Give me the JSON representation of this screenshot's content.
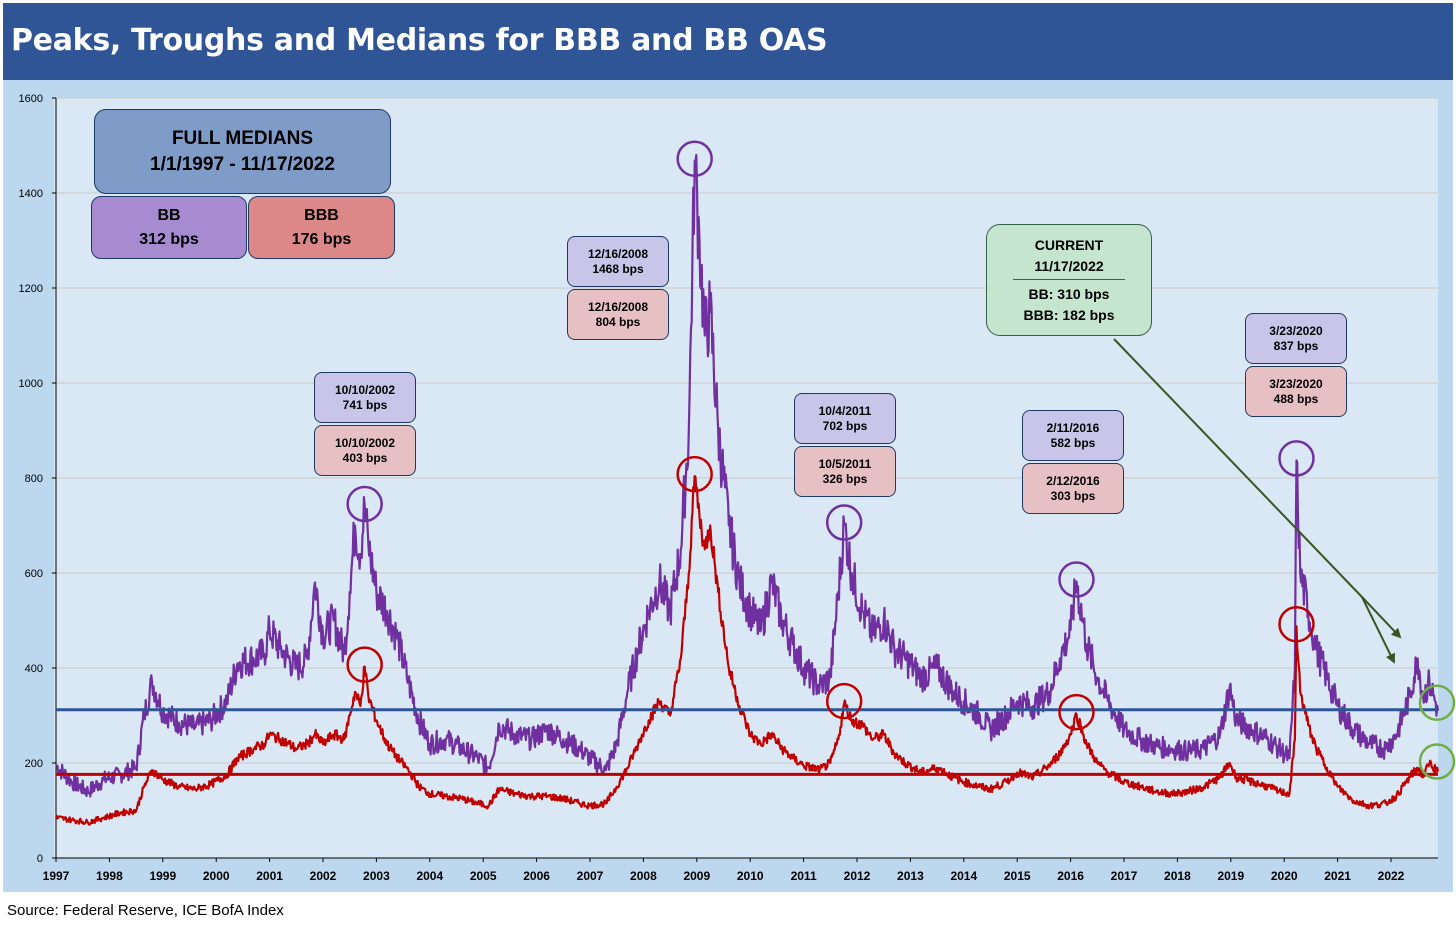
{
  "title": "Peaks, Troughs and Medians for BBB and BB OAS",
  "source": "Source: Federal Reserve, ICE BofA Index",
  "medians_box": {
    "title_line1": "FULL MEDIANS",
    "title_line2": "1/1/1997 - 11/17/2022",
    "bb_label": "BB",
    "bb_value": "312 bps",
    "bbb_label": "BBB",
    "bbb_value": "176 bps"
  },
  "current_box": {
    "line1": "CURRENT",
    "line2": "11/17/2022",
    "line3": "BB: 310 bps",
    "line4": "BBB: 182 bps"
  },
  "peak_labels": [
    {
      "bb_date": "10/10/2002",
      "bb_value": "741 bps",
      "bbb_date": "10/10/2002",
      "bbb_value": "403 bps"
    },
    {
      "bb_date": "12/16/2008",
      "bb_value": "1468 bps",
      "bbb_date": "12/16/2008",
      "bbb_value": "804 bps"
    },
    {
      "bb_date": "10/4/2011",
      "bb_value": "702 bps",
      "bbb_date": "10/5/2011",
      "bbb_value": "326 bps"
    },
    {
      "bb_date": "2/11/2016",
      "bb_value": "582 bps",
      "bbb_date": "2/12/2016",
      "bbb_value": "303 bps"
    },
    {
      "bb_date": "3/23/2020",
      "bb_value": "837 bps",
      "bbb_date": "3/23/2020",
      "bbb_value": "488 bps"
    }
  ],
  "colors": {
    "bb_line": "#7030a0",
    "bbb_line": "#c00000",
    "bb_median": "#2f5597",
    "bbb_median": "#c00000",
    "plot_bg": "#dae8f5",
    "current_marker": "#70ad47",
    "arrow": "#375623"
  },
  "chart_data": {
    "type": "line",
    "title": "Peaks, Troughs and Medians for BBB and BB OAS",
    "xlabel": "",
    "ylabel": "",
    "xlim": [
      1997.0,
      2022.88
    ],
    "ylim": [
      0,
      1600
    ],
    "y_ticks": [
      0,
      200,
      400,
      600,
      800,
      1000,
      1200,
      1400,
      1600
    ],
    "x_ticks": [
      "1997",
      "1998",
      "1999",
      "2000",
      "2001",
      "2002",
      "2003",
      "2004",
      "2005",
      "2006",
      "2007",
      "2008",
      "2009",
      "2010",
      "2011",
      "2012",
      "2013",
      "2014",
      "2015",
      "2016",
      "2017",
      "2018",
      "2019",
      "2020",
      "2021",
      "2022"
    ],
    "gridlines": true,
    "medians": {
      "BB": 312,
      "BBB": 176
    },
    "series": [
      {
        "name": "BB OAS",
        "points": [
          [
            1997.0,
            195
          ],
          [
            1997.3,
            160
          ],
          [
            1997.6,
            140
          ],
          [
            1997.9,
            165
          ],
          [
            1998.2,
            175
          ],
          [
            1998.5,
            190
          ],
          [
            1998.65,
            300
          ],
          [
            1998.8,
            370
          ],
          [
            1999.0,
            310
          ],
          [
            1999.3,
            285
          ],
          [
            1999.6,
            275
          ],
          [
            1999.9,
            290
          ],
          [
            2000.2,
            330
          ],
          [
            2000.4,
            410
          ],
          [
            2000.7,
            420
          ],
          [
            2000.9,
            430
          ],
          [
            2001.0,
            480
          ],
          [
            2001.2,
            440
          ],
          [
            2001.5,
            400
          ],
          [
            2001.7,
            420
          ],
          [
            2001.85,
            580
          ],
          [
            2002.0,
            470
          ],
          [
            2002.2,
            500
          ],
          [
            2002.4,
            430
          ],
          [
            2002.5,
            560
          ],
          [
            2002.6,
            700
          ],
          [
            2002.7,
            640
          ],
          [
            2002.78,
            741
          ],
          [
            2002.85,
            660
          ],
          [
            2003.0,
            560
          ],
          [
            2003.2,
            520
          ],
          [
            2003.4,
            460
          ],
          [
            2003.6,
            370
          ],
          [
            2003.8,
            290
          ],
          [
            2004.0,
            240
          ],
          [
            2004.3,
            250
          ],
          [
            2004.6,
            230
          ],
          [
            2004.9,
            210
          ],
          [
            2005.1,
            190
          ],
          [
            2005.3,
            280
          ],
          [
            2005.6,
            260
          ],
          [
            2005.9,
            250
          ],
          [
            2006.2,
            270
          ],
          [
            2006.5,
            250
          ],
          [
            2006.8,
            230
          ],
          [
            2007.0,
            210
          ],
          [
            2007.3,
            185
          ],
          [
            2007.5,
            240
          ],
          [
            2007.7,
            350
          ],
          [
            2007.9,
            440
          ],
          [
            2008.1,
            520
          ],
          [
            2008.3,
            580
          ],
          [
            2008.5,
            520
          ],
          [
            2008.7,
            650
          ],
          [
            2008.85,
            900
          ],
          [
            2008.96,
            1468
          ],
          [
            2009.05,
            1300
          ],
          [
            2009.15,
            1100
          ],
          [
            2009.25,
            1150
          ],
          [
            2009.4,
            900
          ],
          [
            2009.6,
            700
          ],
          [
            2009.8,
            580
          ],
          [
            2010.0,
            520
          ],
          [
            2010.2,
            480
          ],
          [
            2010.4,
            580
          ],
          [
            2010.6,
            500
          ],
          [
            2010.8,
            450
          ],
          [
            2011.0,
            400
          ],
          [
            2011.3,
            360
          ],
          [
            2011.5,
            380
          ],
          [
            2011.65,
            560
          ],
          [
            2011.76,
            702
          ],
          [
            2011.9,
            600
          ],
          [
            2012.1,
            520
          ],
          [
            2012.3,
            470
          ],
          [
            2012.5,
            500
          ],
          [
            2012.7,
            440
          ],
          [
            2012.9,
            420
          ],
          [
            2013.2,
            380
          ],
          [
            2013.5,
            400
          ],
          [
            2013.8,
            350
          ],
          [
            2014.0,
            330
          ],
          [
            2014.3,
            300
          ],
          [
            2014.5,
            270
          ],
          [
            2014.8,
            300
          ],
          [
            2015.0,
            330
          ],
          [
            2015.3,
            320
          ],
          [
            2015.6,
            350
          ],
          [
            2015.8,
            420
          ],
          [
            2016.0,
            480
          ],
          [
            2016.11,
            582
          ],
          [
            2016.3,
            450
          ],
          [
            2016.5,
            380
          ],
          [
            2016.7,
            330
          ],
          [
            2017.0,
            270
          ],
          [
            2017.3,
            250
          ],
          [
            2017.6,
            235
          ],
          [
            2017.9,
            230
          ],
          [
            2018.2,
            225
          ],
          [
            2018.5,
            230
          ],
          [
            2018.8,
            260
          ],
          [
            2018.98,
            360
          ],
          [
            2019.1,
            290
          ],
          [
            2019.4,
            270
          ],
          [
            2019.7,
            250
          ],
          [
            2019.9,
            230
          ],
          [
            2020.1,
            210
          ],
          [
            2020.2,
            400
          ],
          [
            2020.23,
            837
          ],
          [
            2020.3,
            600
          ],
          [
            2020.45,
            520
          ],
          [
            2020.6,
            440
          ],
          [
            2020.8,
            380
          ],
          [
            2021.0,
            320
          ],
          [
            2021.3,
            270
          ],
          [
            2021.6,
            240
          ],
          [
            2021.9,
            230
          ],
          [
            2022.1,
            260
          ],
          [
            2022.35,
            340
          ],
          [
            2022.5,
            420
          ],
          [
            2022.6,
            340
          ],
          [
            2022.72,
            370
          ],
          [
            2022.88,
            310
          ]
        ]
      },
      {
        "name": "BBB OAS",
        "points": [
          [
            1997.0,
            85
          ],
          [
            1997.3,
            80
          ],
          [
            1997.6,
            75
          ],
          [
            1997.9,
            85
          ],
          [
            1998.2,
            95
          ],
          [
            1998.5,
            100
          ],
          [
            1998.65,
            150
          ],
          [
            1998.8,
            185
          ],
          [
            1999.0,
            165
          ],
          [
            1999.3,
            150
          ],
          [
            1999.6,
            145
          ],
          [
            1999.9,
            155
          ],
          [
            2000.2,
            175
          ],
          [
            2000.4,
            210
          ],
          [
            2000.7,
            230
          ],
          [
            2000.9,
            240
          ],
          [
            2001.0,
            260
          ],
          [
            2001.2,
            250
          ],
          [
            2001.5,
            230
          ],
          [
            2001.7,
            240
          ],
          [
            2001.85,
            260
          ],
          [
            2002.0,
            240
          ],
          [
            2002.2,
            260
          ],
          [
            2002.4,
            250
          ],
          [
            2002.5,
            300
          ],
          [
            2002.6,
            350
          ],
          [
            2002.7,
            320
          ],
          [
            2002.78,
            403
          ],
          [
            2002.85,
            340
          ],
          [
            2003.0,
            290
          ],
          [
            2003.2,
            240
          ],
          [
            2003.4,
            210
          ],
          [
            2003.6,
            185
          ],
          [
            2003.8,
            150
          ],
          [
            2004.0,
            135
          ],
          [
            2004.3,
            130
          ],
          [
            2004.6,
            125
          ],
          [
            2004.9,
            115
          ],
          [
            2005.1,
            110
          ],
          [
            2005.3,
            145
          ],
          [
            2005.6,
            135
          ],
          [
            2005.9,
            130
          ],
          [
            2006.2,
            130
          ],
          [
            2006.5,
            125
          ],
          [
            2006.8,
            115
          ],
          [
            2007.0,
            110
          ],
          [
            2007.3,
            115
          ],
          [
            2007.5,
            150
          ],
          [
            2007.7,
            190
          ],
          [
            2007.9,
            240
          ],
          [
            2008.1,
            290
          ],
          [
            2008.3,
            330
          ],
          [
            2008.5,
            300
          ],
          [
            2008.7,
            420
          ],
          [
            2008.85,
            600
          ],
          [
            2008.96,
            804
          ],
          [
            2009.05,
            720
          ],
          [
            2009.15,
            650
          ],
          [
            2009.25,
            700
          ],
          [
            2009.4,
            560
          ],
          [
            2009.6,
            400
          ],
          [
            2009.8,
            320
          ],
          [
            2010.0,
            260
          ],
          [
            2010.2,
            240
          ],
          [
            2010.4,
            260
          ],
          [
            2010.6,
            230
          ],
          [
            2010.8,
            210
          ],
          [
            2011.0,
            195
          ],
          [
            2011.3,
            185
          ],
          [
            2011.5,
            200
          ],
          [
            2011.65,
            250
          ],
          [
            2011.76,
            326
          ],
          [
            2011.9,
            290
          ],
          [
            2012.1,
            280
          ],
          [
            2012.3,
            250
          ],
          [
            2012.5,
            260
          ],
          [
            2012.7,
            220
          ],
          [
            2012.9,
            200
          ],
          [
            2013.2,
            180
          ],
          [
            2013.5,
            190
          ],
          [
            2013.8,
            170
          ],
          [
            2014.0,
            160
          ],
          [
            2014.3,
            150
          ],
          [
            2014.5,
            145
          ],
          [
            2014.8,
            160
          ],
          [
            2015.0,
            180
          ],
          [
            2015.3,
            170
          ],
          [
            2015.6,
            195
          ],
          [
            2015.8,
            220
          ],
          [
            2016.0,
            260
          ],
          [
            2016.11,
            303
          ],
          [
            2016.3,
            240
          ],
          [
            2016.5,
            200
          ],
          [
            2016.7,
            180
          ],
          [
            2017.0,
            160
          ],
          [
            2017.3,
            150
          ],
          [
            2017.6,
            140
          ],
          [
            2017.9,
            135
          ],
          [
            2018.2,
            140
          ],
          [
            2018.5,
            150
          ],
          [
            2018.8,
            170
          ],
          [
            2018.98,
            200
          ],
          [
            2019.1,
            170
          ],
          [
            2019.4,
            160
          ],
          [
            2019.7,
            150
          ],
          [
            2019.9,
            140
          ],
          [
            2020.1,
            135
          ],
          [
            2020.2,
            250
          ],
          [
            2020.23,
            488
          ],
          [
            2020.3,
            350
          ],
          [
            2020.45,
            280
          ],
          [
            2020.6,
            230
          ],
          [
            2020.8,
            190
          ],
          [
            2021.0,
            150
          ],
          [
            2021.3,
            120
          ],
          [
            2021.6,
            110
          ],
          [
            2021.9,
            115
          ],
          [
            2022.1,
            130
          ],
          [
            2022.35,
            170
          ],
          [
            2022.5,
            190
          ],
          [
            2022.6,
            170
          ],
          [
            2022.72,
            200
          ],
          [
            2022.88,
            182
          ]
        ]
      }
    ]
  }
}
